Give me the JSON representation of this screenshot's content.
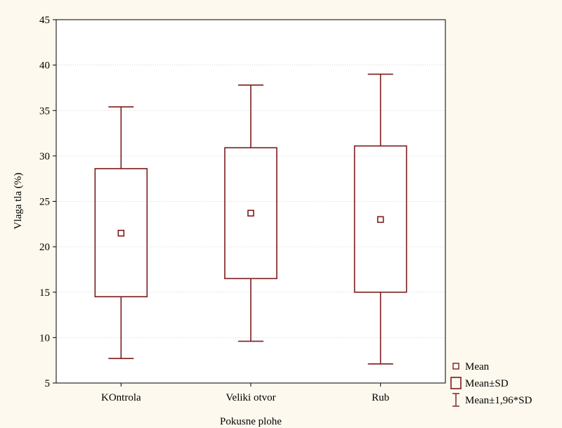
{
  "chart_data": {
    "type": "box",
    "xlabel": "Pokusne plohe",
    "ylabel": "Vlaga tla (%)",
    "ylim": [
      5,
      45
    ],
    "yticks": [
      5,
      10,
      15,
      20,
      25,
      30,
      35,
      40,
      45
    ],
    "grid": true,
    "legend_position": "bottom-right",
    "categories": [
      "KOntrola",
      "Veliki otvor",
      "Rub"
    ],
    "boxes": [
      {
        "category": "KOntrola",
        "mean": 21.5,
        "sd_low": 14.5,
        "sd_high": 28.6,
        "ci_low": 7.7,
        "ci_high": 35.4
      },
      {
        "category": "Veliki otvor",
        "mean": 23.7,
        "sd_low": 16.5,
        "sd_high": 30.9,
        "ci_low": 9.6,
        "ci_high": 37.8
      },
      {
        "category": "Rub",
        "mean": 23.0,
        "sd_low": 15.0,
        "sd_high": 31.1,
        "ci_low": 7.1,
        "ci_high": 39.0
      }
    ],
    "legend": [
      {
        "symbol": "mean-marker",
        "label": "Mean"
      },
      {
        "symbol": "box",
        "label": "Mean±SD"
      },
      {
        "symbol": "whisker",
        "label": "Mean±1,96*SD"
      }
    ],
    "colors": {
      "series": "#7b1b1b",
      "grid": "#c8c8c8",
      "axis": "#000000",
      "background": "#fdf9ee",
      "plot_background": "#ffffff"
    }
  }
}
